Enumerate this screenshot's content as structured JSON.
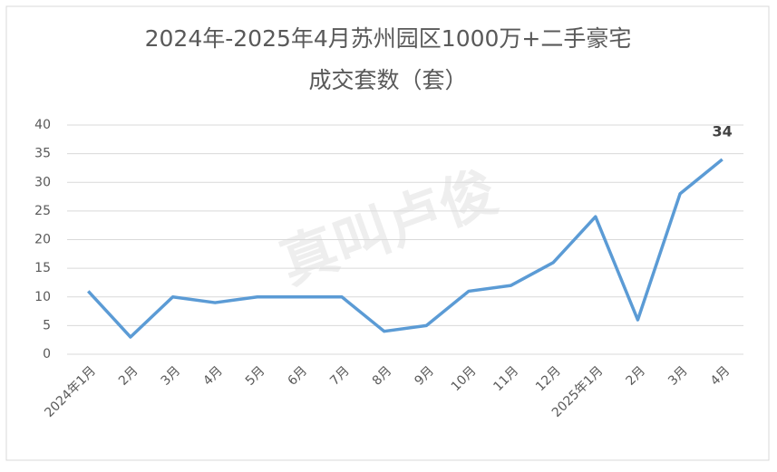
{
  "chart_data": {
    "type": "line",
    "title": [
      "2024年-2025年4月苏州园区1000万+二手豪宅",
      "成交套数（套）"
    ],
    "watermark": "真叫卢俊",
    "categories": [
      "2024年1月",
      "2月",
      "3月",
      "4月",
      "5月",
      "6月",
      "7月",
      "8月",
      "9月",
      "10月",
      "11月",
      "12月",
      "2025年1月",
      "2月",
      "3月",
      "4月"
    ],
    "series": [
      {
        "name": "成交套数",
        "color": "#5b9bd5",
        "values": [
          11,
          3,
          10,
          9,
          10,
          10,
          10,
          4,
          5,
          11,
          12,
          16,
          24,
          6,
          28,
          34
        ]
      }
    ],
    "data_labels": "last",
    "ylim": [
      0,
      40
    ],
    "yticks": [
      0,
      5,
      10,
      15,
      20,
      25,
      30,
      35,
      40
    ],
    "grid": true
  }
}
